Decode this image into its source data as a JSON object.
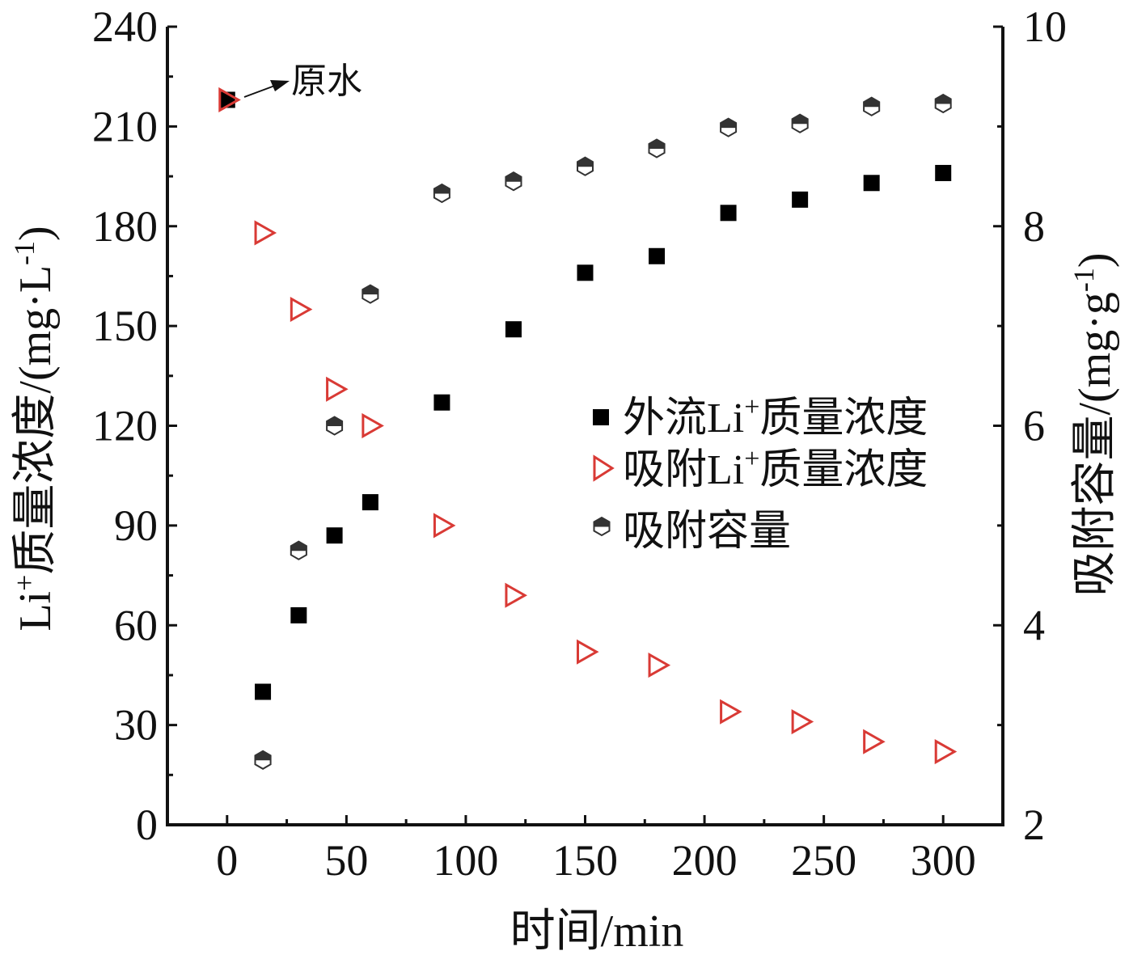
{
  "chart_data": {
    "type": "scatter",
    "xlabel": "时间/min",
    "ylabel_left_main": "Li",
    "ylabel_left_sup": "+",
    "ylabel_left_rest": "质量浓度/(mg·L",
    "ylabel_left_exp": "-1",
    "ylabel_left_close": ")",
    "ylabel_right_main": "吸附容量/(mg·g",
    "ylabel_right_exp": "-1",
    "ylabel_right_close": ")",
    "xlim": [
      -25,
      325
    ],
    "ylim_left": [
      0,
      240
    ],
    "ylim_right": [
      2,
      10
    ],
    "x_ticks": [
      "0",
      "50",
      "100",
      "150",
      "200",
      "250",
      "300"
    ],
    "y_left_ticks": [
      "0",
      "30",
      "60",
      "90",
      "120",
      "150",
      "180",
      "210",
      "240"
    ],
    "y_right_ticks": [
      "2",
      "4",
      "6",
      "8",
      "10"
    ],
    "annotation": "原水",
    "legend_position": "right-center",
    "legend": [
      {
        "pre": "外流Li",
        "sup": "+",
        "post": "质量浓度"
      },
      {
        "pre": "吸附Li",
        "sup": "+",
        "post": "质量浓度"
      },
      {
        "pre": "吸附容量",
        "sup": "",
        "post": ""
      }
    ],
    "series": [
      {
        "marker": "square",
        "axis": "left",
        "color": "#000000",
        "points": [
          [
            0,
            218
          ],
          [
            15,
            40
          ],
          [
            30,
            63
          ],
          [
            45,
            87
          ],
          [
            60,
            97
          ],
          [
            90,
            127
          ],
          [
            120,
            149
          ],
          [
            150,
            166
          ],
          [
            180,
            171
          ],
          [
            210,
            184
          ],
          [
            240,
            188
          ],
          [
            270,
            193
          ],
          [
            300,
            196
          ]
        ]
      },
      {
        "marker": "triangle-right",
        "axis": "left",
        "color": "#d93a35",
        "points": [
          [
            0,
            218
          ],
          [
            15,
            178
          ],
          [
            30,
            155
          ],
          [
            45,
            131
          ],
          [
            60,
            120
          ],
          [
            90,
            90
          ],
          [
            120,
            69
          ],
          [
            150,
            52
          ],
          [
            180,
            48
          ],
          [
            210,
            34
          ],
          [
            240,
            31
          ],
          [
            270,
            25
          ],
          [
            300,
            22
          ]
        ]
      },
      {
        "marker": "half-filled-hexagon",
        "axis": "right",
        "color": "#333333",
        "points": [
          [
            15,
            2.65
          ],
          [
            30,
            4.75
          ],
          [
            45,
            6.0
          ],
          [
            60,
            7.32
          ],
          [
            90,
            8.33
          ],
          [
            120,
            8.45
          ],
          [
            150,
            8.6
          ],
          [
            180,
            8.78
          ],
          [
            210,
            8.99
          ],
          [
            240,
            9.03
          ],
          [
            270,
            9.2
          ],
          [
            300,
            9.23
          ]
        ]
      }
    ]
  }
}
